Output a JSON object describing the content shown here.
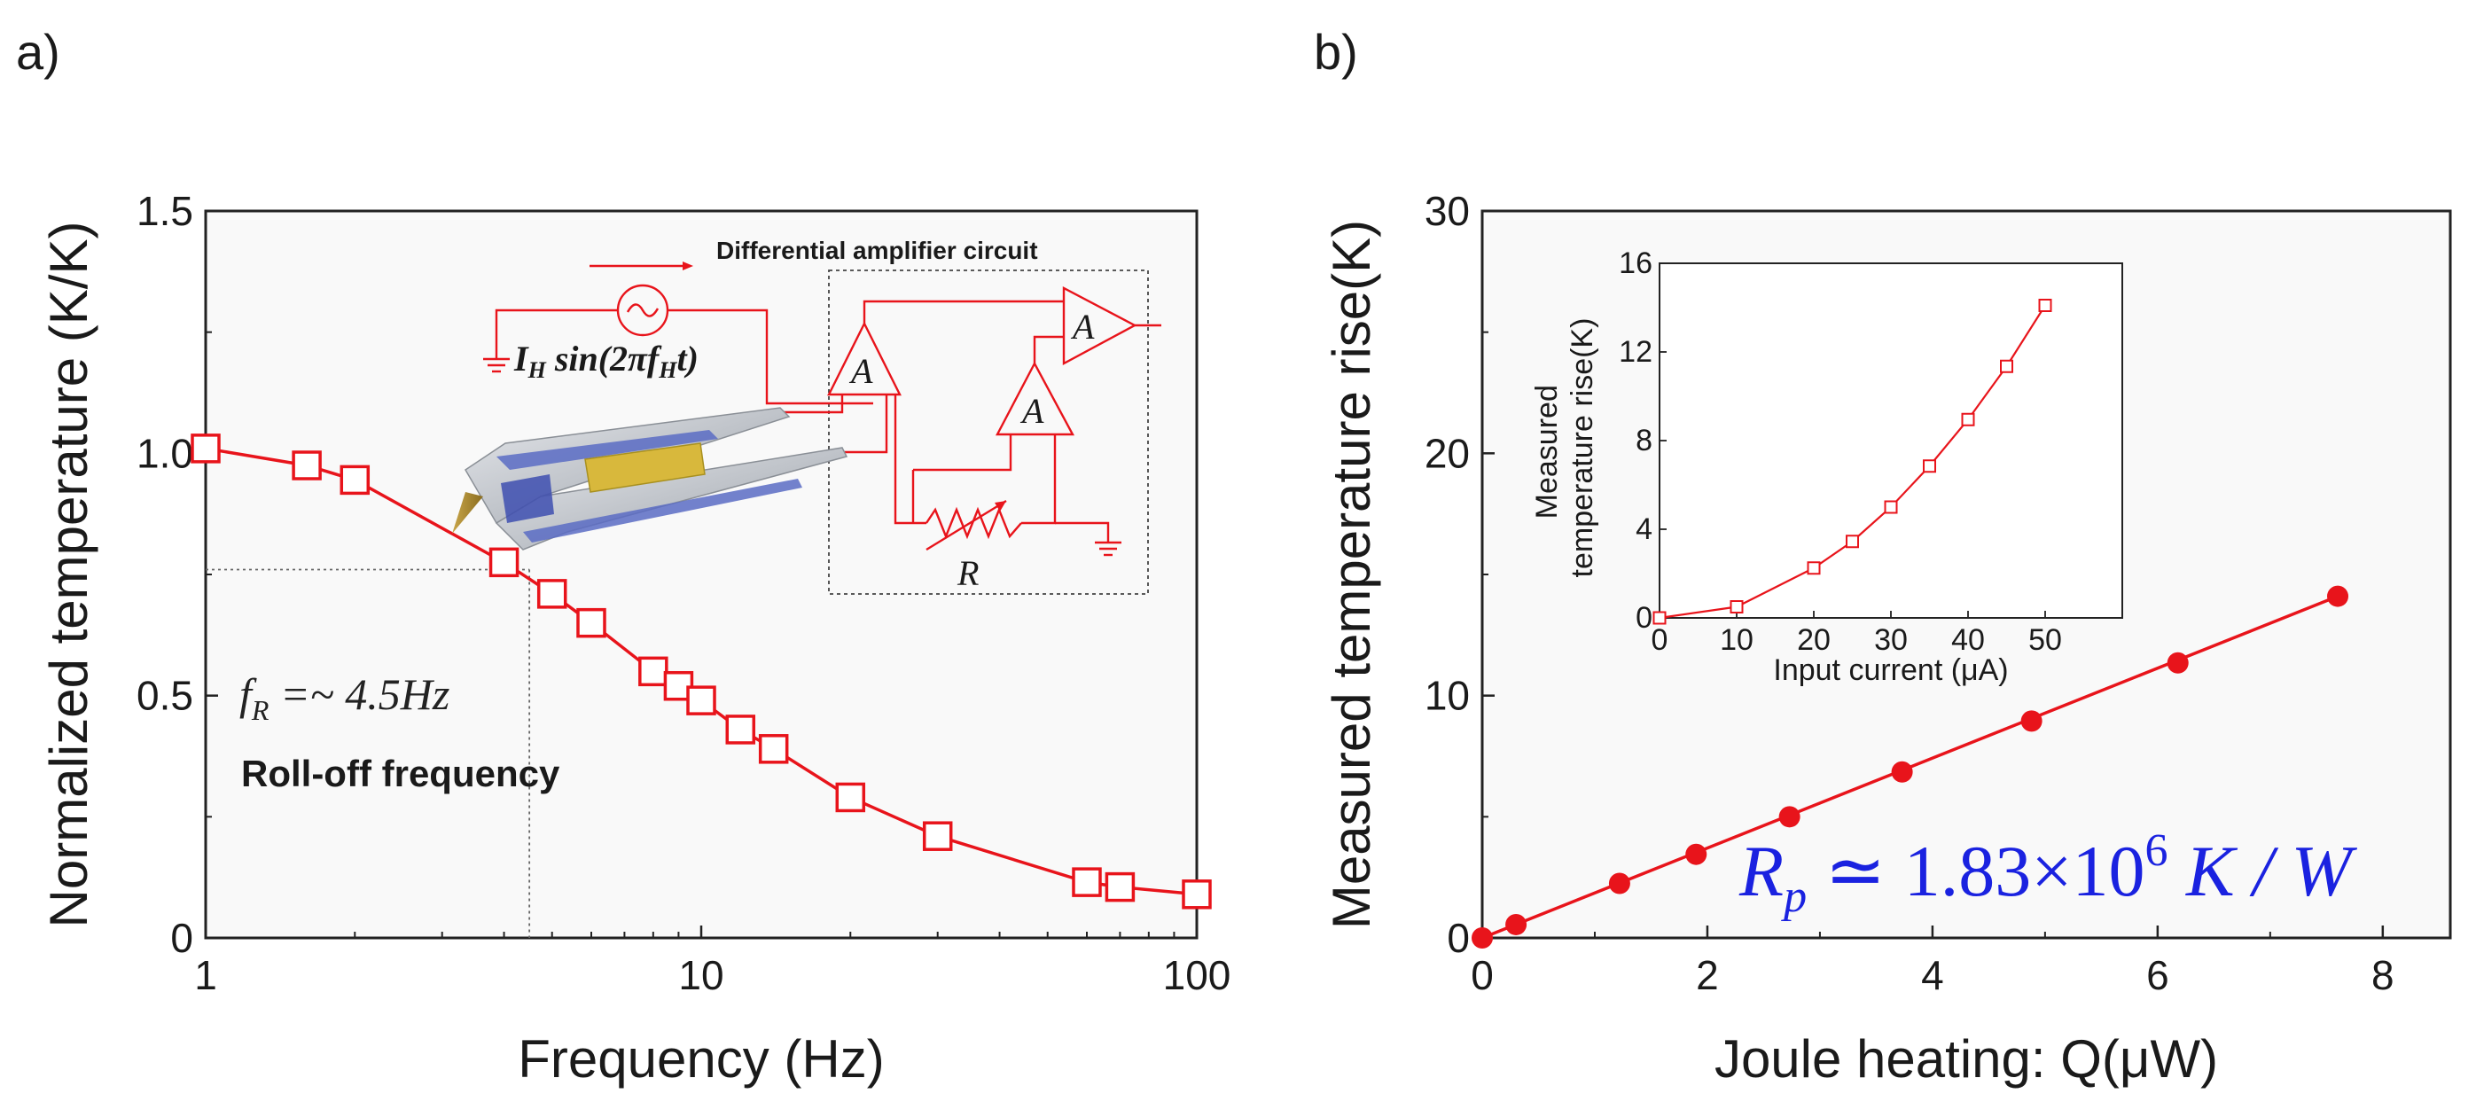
{
  "chart_data": [
    {
      "panel_label": "a)",
      "type": "line",
      "xscale": "log",
      "xlabel": "Frequency (Hz)",
      "ylabel": "Normalized temperature (K/K)",
      "xlim": [
        1,
        100
      ],
      "ylim": [
        0,
        1.5
      ],
      "xticks": [
        {
          "v": 1,
          "label": "1"
        },
        {
          "v": 10,
          "label": "10"
        },
        {
          "v": 100,
          "label": "100"
        }
      ],
      "yticks": [
        {
          "v": 0,
          "label": "0"
        },
        {
          "v": 0.5,
          "label": "0.5"
        },
        {
          "v": 1.0,
          "label": "1.0"
        },
        {
          "v": 1.5,
          "label": "1.5"
        }
      ],
      "series": [
        {
          "name": "normalized temperature",
          "marker": "open-square",
          "color": "#e8141b",
          "x": [
            1,
            1.6,
            2,
            4,
            5,
            6,
            8,
            9,
            10,
            12,
            14,
            20,
            30,
            60,
            70,
            100
          ],
          "y": [
            1.01,
            0.975,
            0.945,
            0.775,
            0.71,
            0.65,
            0.55,
            0.52,
            0.49,
            0.43,
            0.39,
            0.29,
            0.21,
            0.115,
            0.105,
            0.09
          ]
        }
      ],
      "reference_lines": {
        "x": 4.5,
        "y": 0.76
      },
      "annotation_formula": {
        "f": "f",
        "sub": "R",
        "rest": " =~ 4.5Hz"
      },
      "annotation_text": "Roll-off frequency",
      "inset_title": "Differential amplifier circuit",
      "inset_source_label": {
        "i": "I",
        "isub": "H",
        "mid": " sin(2πf",
        "fsub": "H",
        "end": "t)"
      },
      "inset_amp_label": "A",
      "inset_resistor_label": "R"
    },
    {
      "panel_label": "b)",
      "type": "line",
      "xlabel": "Joule heating: Q(μW)",
      "ylabel": "Measured temperature rise(K)",
      "xlim": [
        0,
        8.6
      ],
      "ylim": [
        0,
        30
      ],
      "xticks": [
        {
          "v": 0,
          "label": "0"
        },
        {
          "v": 2,
          "label": "2"
        },
        {
          "v": 4,
          "label": "4"
        },
        {
          "v": 6,
          "label": "6"
        },
        {
          "v": 8,
          "label": "8"
        }
      ],
      "yticks": [
        {
          "v": 0,
          "label": "0"
        },
        {
          "v": 10,
          "label": "10"
        },
        {
          "v": 20,
          "label": "20"
        },
        {
          "v": 30,
          "label": "30"
        }
      ],
      "series": [
        {
          "name": "temperature rise vs heating",
          "marker": "filled-circle",
          "color": "#e8141b",
          "x": [
            0,
            0.3,
            1.22,
            1.9,
            2.73,
            3.73,
            4.88,
            6.18,
            7.6
          ],
          "y": [
            0,
            0.55,
            2.25,
            3.45,
            5.0,
            6.85,
            8.95,
            11.35,
            14.1
          ]
        }
      ],
      "fit_line": {
        "x": [
          0,
          7.6
        ],
        "y": [
          0,
          14.1
        ]
      },
      "annotation_formula": {
        "r": "R",
        "rsub": "p",
        "mid": " ≃ 1.83×10",
        "exp": "6",
        "unit": " K / W"
      },
      "inset": {
        "type": "line",
        "xlabel": "Input current (μA)",
        "ylabel_line1": "Measured",
        "ylabel_line2": "temperature rise(K)",
        "xlim": [
          0,
          60
        ],
        "ylim": [
          0,
          16
        ],
        "xticks": [
          {
            "v": 0,
            "label": "0"
          },
          {
            "v": 10,
            "label": "10"
          },
          {
            "v": 20,
            "label": "20"
          },
          {
            "v": 30,
            "label": "30"
          },
          {
            "v": 40,
            "label": "40"
          },
          {
            "v": 50,
            "label": "50"
          }
        ],
        "yticks": [
          {
            "v": 0,
            "label": "0"
          },
          {
            "v": 4,
            "label": "4"
          },
          {
            "v": 8,
            "label": "8"
          },
          {
            "v": 12,
            "label": "12"
          },
          {
            "v": 16,
            "label": "16"
          }
        ],
        "series": [
          {
            "name": "temperature rise vs current",
            "marker": "open-square",
            "color": "#e8141b",
            "x": [
              0,
              10,
              20,
              25,
              30,
              35,
              40,
              45,
              50
            ],
            "y": [
              0,
              0.5,
              2.25,
              3.45,
              5.0,
              6.85,
              8.95,
              11.35,
              14.1
            ]
          }
        ]
      }
    }
  ]
}
